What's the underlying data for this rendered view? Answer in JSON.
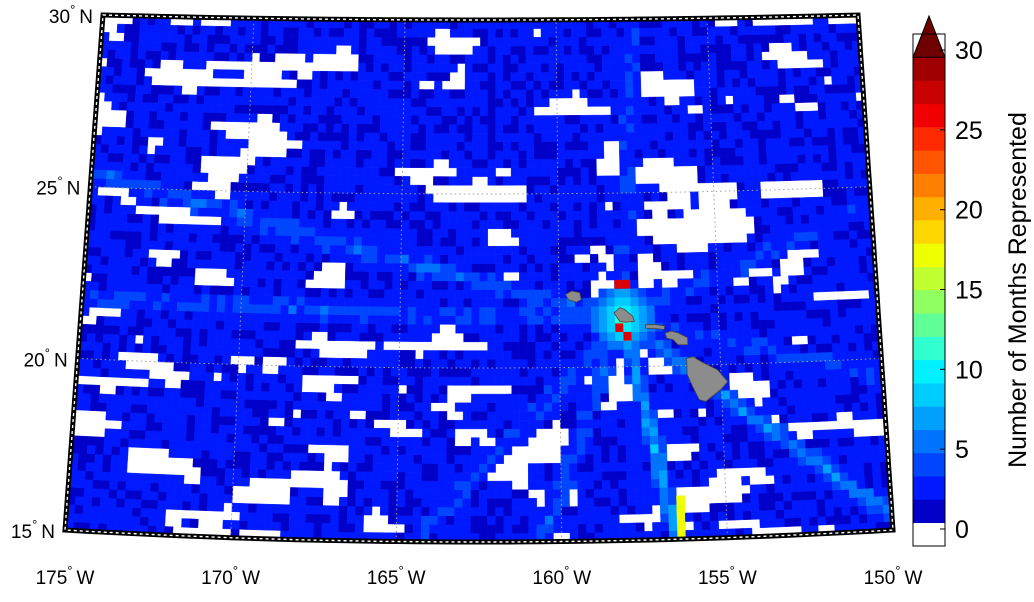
{
  "map": {
    "lat_labels": [
      {
        "lat": 30,
        "deg": "30",
        "hem": "N"
      },
      {
        "lat": 25,
        "deg": "25",
        "hem": "N"
      },
      {
        "lat": 20,
        "deg": "20",
        "hem": "N"
      },
      {
        "lat": 15,
        "deg": "15",
        "hem": "N"
      }
    ],
    "lon_labels": [
      {
        "lon": -175,
        "deg": "175",
        "hem": "W"
      },
      {
        "lon": -170,
        "deg": "170",
        "hem": "W"
      },
      {
        "lon": -165,
        "deg": "165",
        "hem": "W"
      },
      {
        "lon": -160,
        "deg": "160",
        "hem": "W"
      },
      {
        "lon": -155,
        "deg": "155",
        "hem": "W"
      },
      {
        "lon": -150,
        "deg": "150",
        "hem": "W"
      }
    ],
    "extent": {
      "lon_min": -175,
      "lon_max": -150,
      "lat_min": 15,
      "lat_max": 30
    },
    "grid": true,
    "land_color": "#8c8c8c",
    "islands": [
      "Kauai",
      "Oahu",
      "Molokai",
      "Maui",
      "Hawaii"
    ]
  },
  "colorbar": {
    "title": "Number of Months Represented",
    "ticks": [
      "0",
      "5",
      "10",
      "15",
      "20",
      "25",
      "30"
    ],
    "min": 0,
    "max": 30,
    "extend": "max",
    "colors": [
      "#ffffff",
      "#0000c8",
      "#0019ff",
      "#0046ff",
      "#0073ff",
      "#00a0ff",
      "#00cdff",
      "#00f0ff",
      "#30ffd0",
      "#60ff98",
      "#90ff60",
      "#c0ff30",
      "#f0ff00",
      "#ffd700",
      "#ffaf00",
      "#ff8000",
      "#ff5500",
      "#ff2a00",
      "#f00000",
      "#c80000",
      "#a00000",
      "#6e0000"
    ]
  }
}
